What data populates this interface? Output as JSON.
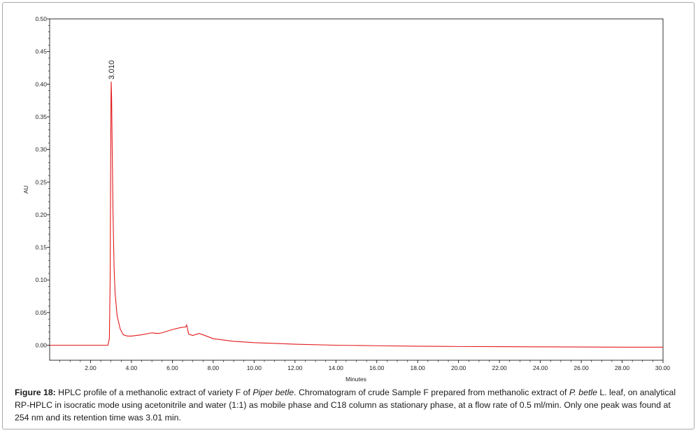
{
  "chart_data": {
    "type": "line",
    "xlabel": "Minutes",
    "ylabel": "AU",
    "xlim": [
      0,
      30
    ],
    "ylim": [
      -0.025,
      0.5
    ],
    "x_ticks": [
      "2.00",
      "4.00",
      "6.00",
      "8.00",
      "10.00",
      "12.00",
      "14.00",
      "16.00",
      "18.00",
      "20.00",
      "22.00",
      "24.00",
      "26.00",
      "28.00",
      "30.00"
    ],
    "y_ticks": [
      "0.00",
      "0.05",
      "0.10",
      "0.15",
      "0.20",
      "0.25",
      "0.30",
      "0.35",
      "0.40",
      "0.45",
      "0.50"
    ],
    "grid": false,
    "line_color": "#e31a1c",
    "peak_label": {
      "text": "3.010",
      "x": 3.01,
      "y": 0.404
    },
    "series": [
      {
        "x": [
          0,
          1.0,
          2.0,
          2.85,
          2.92,
          2.96,
          2.98,
          3.0,
          3.01,
          3.03,
          3.06,
          3.1,
          3.15,
          3.2,
          3.3,
          3.45,
          3.6,
          3.8,
          4.0,
          4.5,
          5.0,
          5.3,
          5.5,
          6.0,
          6.4,
          6.65,
          6.7,
          6.8,
          7.0,
          7.3,
          7.5,
          8.0,
          9.0,
          10.0,
          12.0,
          14.0,
          16.0,
          18.0,
          20.0,
          22.0,
          24.0,
          26.0,
          28.0,
          30.0
        ],
        "y": [
          0.0,
          0.0,
          0.0,
          0.0,
          0.01,
          0.1,
          0.25,
          0.38,
          0.404,
          0.38,
          0.3,
          0.2,
          0.12,
          0.08,
          0.045,
          0.025,
          0.016,
          0.014,
          0.014,
          0.016,
          0.019,
          0.018,
          0.019,
          0.024,
          0.027,
          0.028,
          0.031,
          0.017,
          0.015,
          0.018,
          0.016,
          0.01,
          0.006,
          0.004,
          0.0015,
          0.0,
          -0.0008,
          -0.0015,
          -0.002,
          -0.0022,
          -0.0025,
          -0.0028,
          -0.003,
          -0.003
        ]
      }
    ]
  },
  "caption": {
    "label": "Figure 18:",
    "text_1": " HPLC profile of a methanolic extract of variety F of ",
    "italic_1": "Piper betle",
    "text_2": ". Chromatogram of crude Sample F prepared from methanolic extract of ",
    "italic_2": "P. betle",
    "text_3": " L. leaf, on analytical RP-HPLC in isocratic mode using acetonitrile and water (1:1) as mobile phase and C18 column as stationary phase, at a flow rate of 0.5 ml/min. Only one peak was found at 254 nm and its retention time was 3.01 min."
  }
}
